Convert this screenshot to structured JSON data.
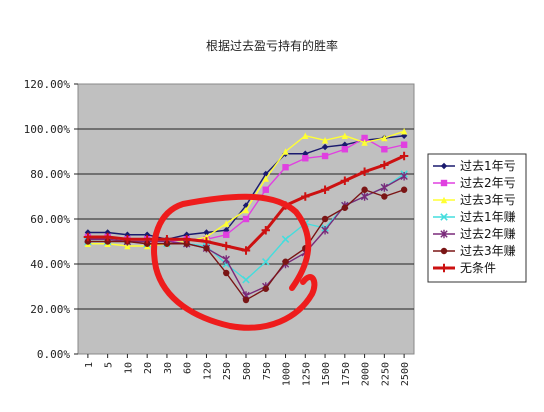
{
  "chart_data": {
    "type": "line",
    "title": "根据过去盈亏持有的胜率",
    "xlabel": "",
    "ylabel": "",
    "categories": [
      "1",
      "5",
      "10",
      "20",
      "30",
      "60",
      "120",
      "250",
      "500",
      "750",
      "1000",
      "1250",
      "1500",
      "1750",
      "2000",
      "2250",
      "2500"
    ],
    "ylim": [
      0,
      120
    ],
    "yticks": [
      "0.00%",
      "20.00%",
      "40.00%",
      "60.00%",
      "80.00%",
      "100.00%",
      "120.00%"
    ],
    "grid": true,
    "legend_position": "right",
    "series": [
      {
        "name": "过去1年亏",
        "color": "#1a1a6e",
        "marker": "diamond",
        "values": [
          54,
          54,
          53,
          53,
          51,
          53,
          54,
          55,
          66,
          80,
          89,
          89,
          92,
          93,
          95,
          96,
          97
        ]
      },
      {
        "name": "过去2年亏",
        "color": "#e040e0",
        "marker": "square",
        "values": [
          52,
          52,
          51,
          51,
          50,
          51,
          51,
          53,
          60,
          73,
          83,
          87,
          88,
          91,
          96,
          91,
          93
        ]
      },
      {
        "name": "过去3年亏",
        "color": "#ffff33",
        "marker": "triangle",
        "values": [
          49,
          49,
          48,
          48,
          49,
          50,
          52,
          58,
          64,
          78,
          90,
          97,
          95,
          97,
          94,
          96,
          99
        ]
      },
      {
        "name": "过去1年赚",
        "color": "#44dddd",
        "marker": "x",
        "values": [
          50,
          50,
          50,
          49,
          49,
          49,
          48,
          40,
          33,
          41,
          51,
          58,
          56,
          66,
          70,
          74,
          80
        ]
      },
      {
        "name": "过去2年赚",
        "color": "#7a2a7a",
        "marker": "star",
        "values": [
          51,
          51,
          50,
          50,
          50,
          49,
          47,
          42,
          26,
          30,
          40,
          45,
          55,
          66,
          70,
          74,
          79
        ]
      },
      {
        "name": "过去3年赚",
        "color": "#7a1515",
        "marker": "circle",
        "values": [
          50,
          50,
          50,
          49,
          49,
          49,
          47,
          36,
          24,
          29,
          41,
          47,
          60,
          65,
          73,
          70,
          73
        ]
      },
      {
        "name": "无条件",
        "color": "#cc1111",
        "marker": "plus",
        "values": [
          52,
          52,
          51,
          51,
          51,
          51,
          50,
          48,
          46,
          55,
          66,
          70,
          73,
          77,
          81,
          84,
          88
        ]
      }
    ]
  }
}
